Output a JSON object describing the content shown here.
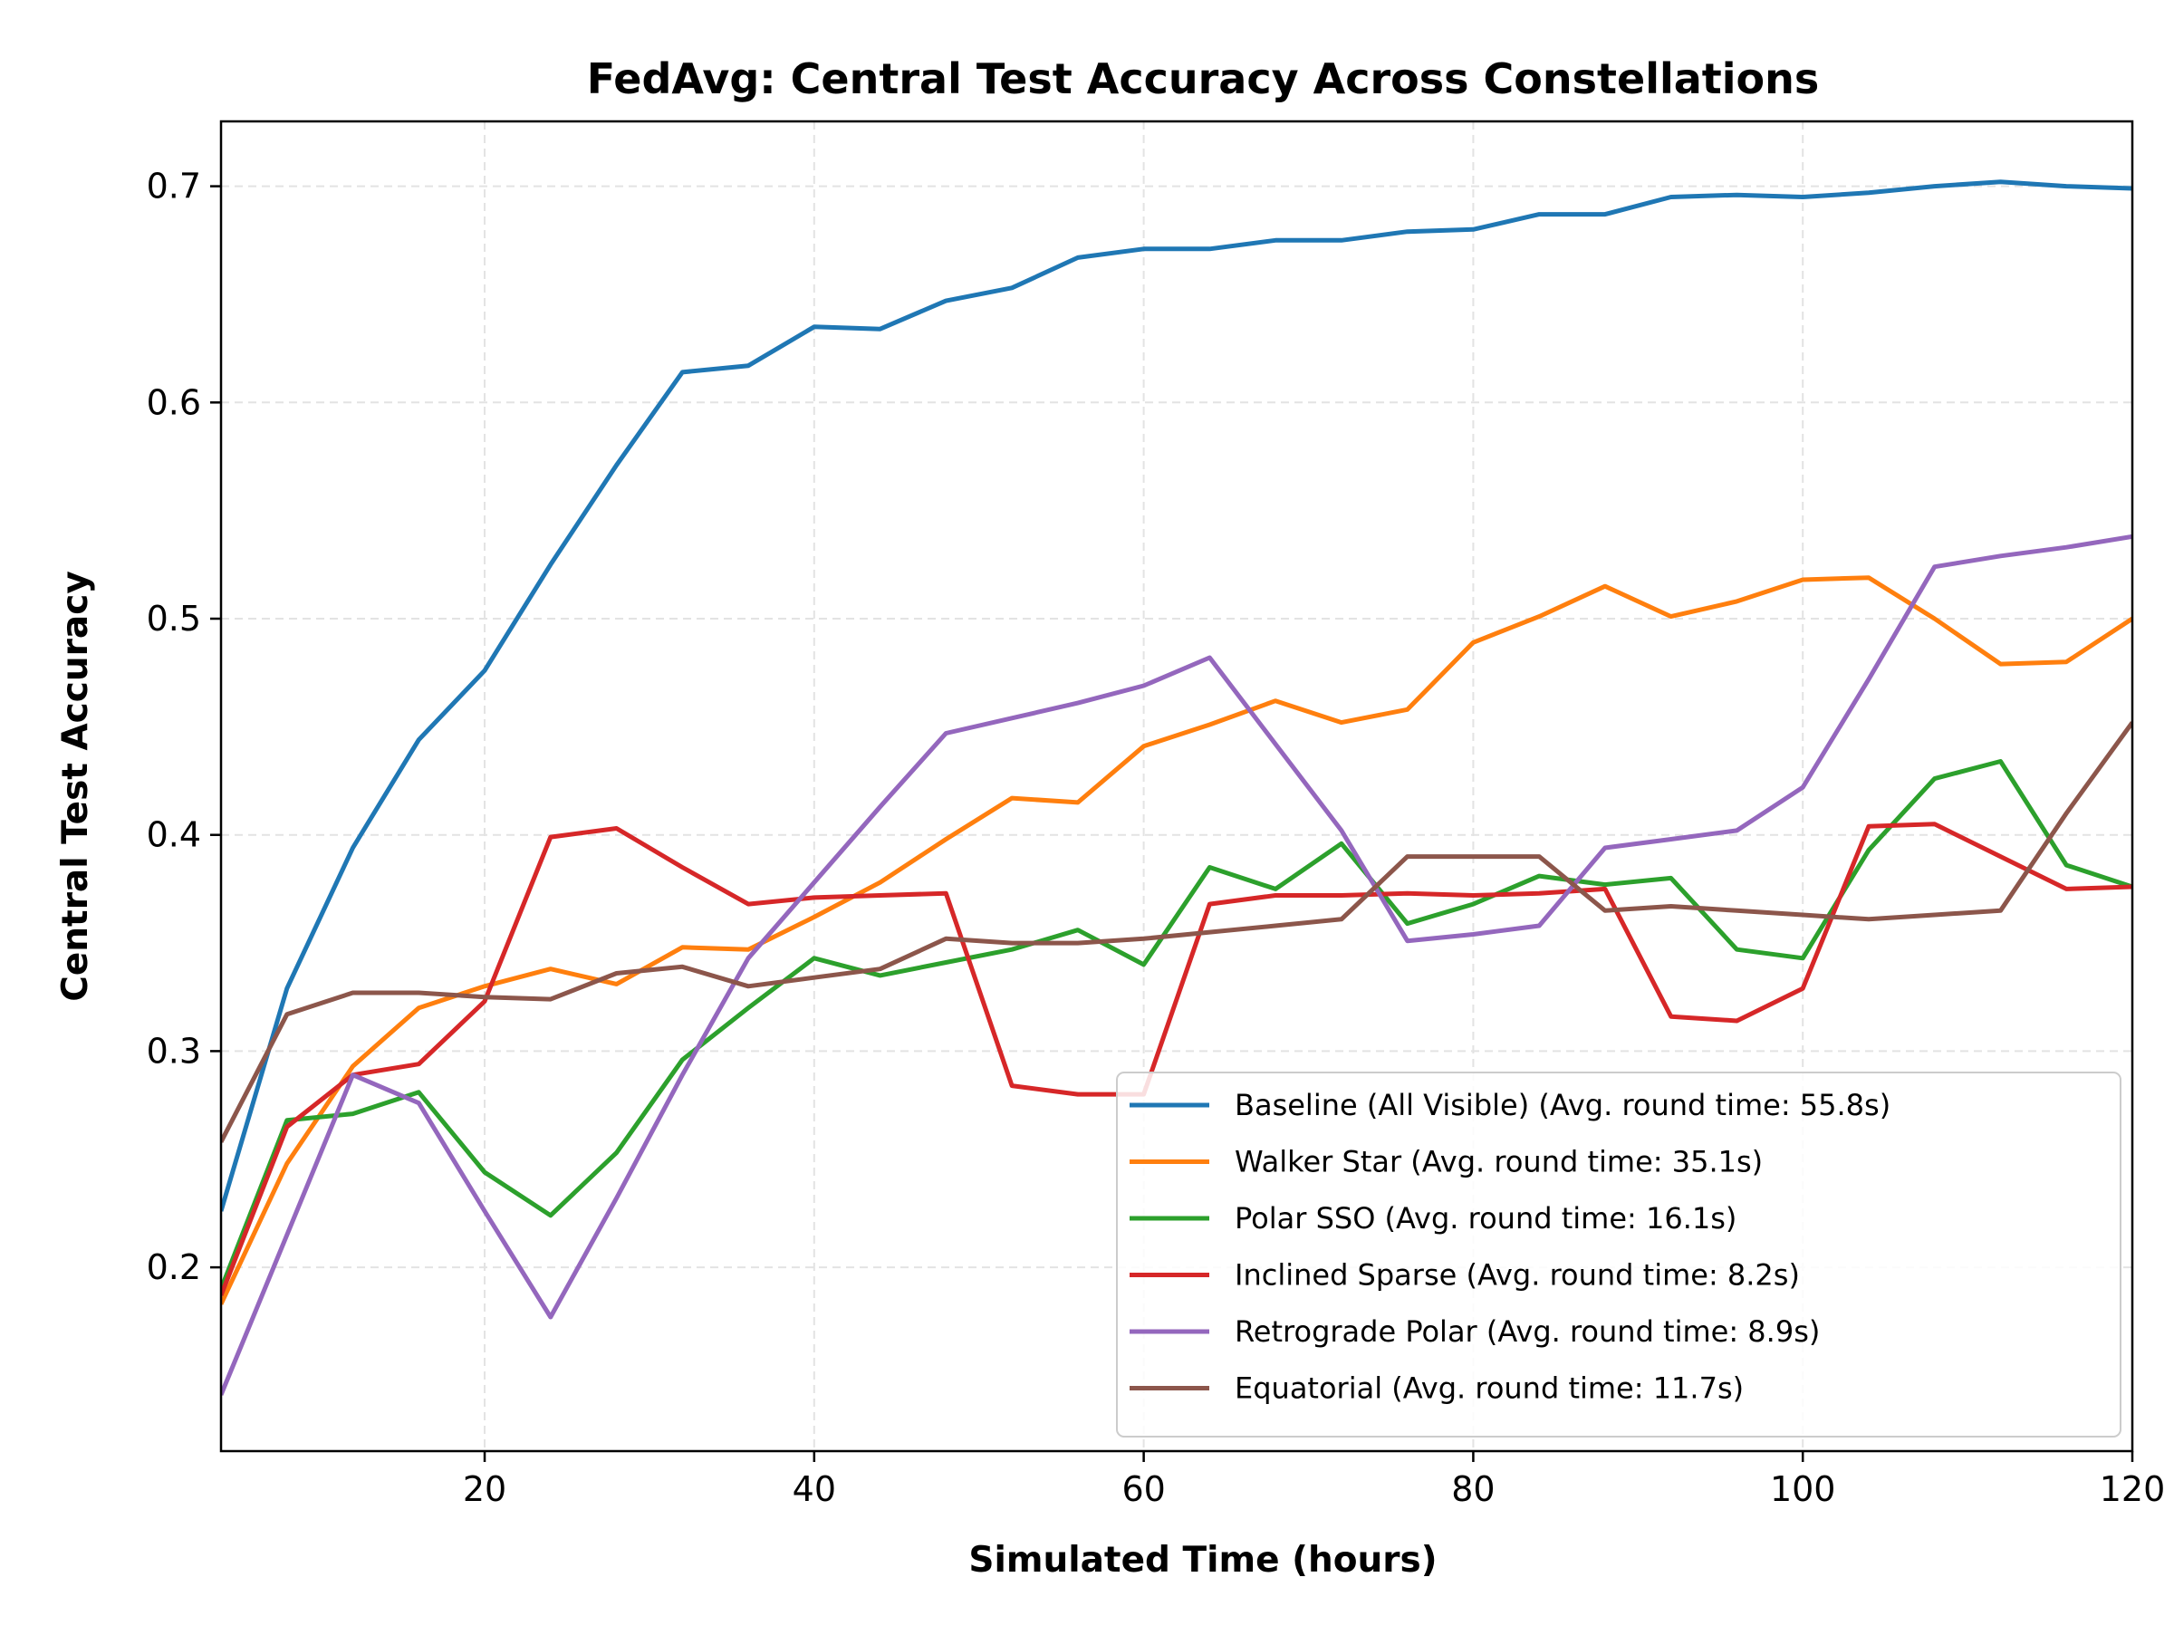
{
  "chart_data": {
    "type": "line",
    "title": "FedAvg: Central Test Accuracy Across Constellations",
    "xlabel": "Simulated Time (hours)",
    "ylabel": "Central Test Accuracy",
    "xlim": [
      4,
      120
    ],
    "ylim": [
      0.115,
      0.73
    ],
    "xticks": [
      20,
      40,
      60,
      80,
      100,
      120
    ],
    "yticks": [
      0.2,
      0.3,
      0.4,
      0.5,
      0.6,
      0.7
    ],
    "xtick_labels": [
      "20",
      "40",
      "60",
      "80",
      "100",
      "120"
    ],
    "ytick_labels": [
      "0.2",
      "0.3",
      "0.4",
      "0.5",
      "0.6",
      "0.7"
    ],
    "grid": true,
    "legend_position": "lower-right",
    "x": [
      4,
      8,
      12,
      16,
      20,
      24,
      28,
      32,
      36,
      40,
      44,
      48,
      52,
      56,
      60,
      64,
      68,
      72,
      76,
      80,
      84,
      88,
      92,
      96,
      100,
      104,
      108,
      112,
      116,
      120
    ],
    "series": [
      {
        "name": "Baseline (All Visible) (Avg. round time: 55.8s)",
        "color": "#1f77b4",
        "values": [
          0.226,
          0.329,
          0.394,
          0.444,
          0.476,
          0.525,
          0.571,
          0.614,
          0.617,
          0.635,
          0.634,
          0.647,
          0.653,
          0.667,
          0.671,
          0.671,
          0.675,
          0.675,
          0.679,
          0.68,
          0.687,
          0.687,
          0.695,
          0.696,
          0.695,
          0.697,
          0.7,
          0.702,
          0.7,
          0.699
        ]
      },
      {
        "name": "Walker Star (Avg. round time: 35.1s)",
        "color": "#ff7f0e",
        "values": [
          0.183,
          0.248,
          0.293,
          0.32,
          0.33,
          0.338,
          0.331,
          0.348,
          0.347,
          0.362,
          0.378,
          0.398,
          0.417,
          0.415,
          0.441,
          0.451,
          0.462,
          0.452,
          0.458,
          0.489,
          0.501,
          0.515,
          0.501,
          0.508,
          0.518,
          0.519,
          0.5,
          0.479,
          0.48,
          0.5
        ]
      },
      {
        "name": "Polar SSO (Avg. round time: 16.1s)",
        "color": "#2ca02c",
        "values": [
          0.19,
          0.268,
          0.271,
          0.281,
          0.244,
          0.224,
          0.253,
          0.296,
          0.32,
          0.343,
          0.335,
          0.341,
          0.347,
          0.356,
          0.34,
          0.385,
          0.375,
          0.396,
          0.359,
          0.368,
          0.381,
          0.377,
          0.38,
          0.347,
          0.343,
          0.393,
          0.426,
          0.434,
          0.386,
          0.376
        ]
      },
      {
        "name": "Inclined Sparse (Avg. round time: 8.2s)",
        "color": "#d62728",
        "values": [
          0.187,
          0.265,
          0.289,
          0.294,
          0.323,
          0.399,
          0.403,
          0.385,
          0.368,
          0.371,
          0.372,
          0.373,
          0.284,
          0.28,
          0.28,
          0.368,
          0.372,
          0.372,
          0.373,
          0.372,
          0.373,
          0.375,
          0.316,
          0.314,
          0.329,
          0.404,
          0.405,
          0.39,
          0.375,
          0.376
        ]
      },
      {
        "name": "Retrograde Polar (Avg. round time: 8.9s)",
        "color": "#9467bd",
        "values": [
          0.141,
          0.215,
          0.289,
          0.276,
          0.226,
          0.177,
          0.232,
          0.289,
          0.343,
          0.378,
          0.413,
          0.447,
          0.454,
          0.461,
          0.469,
          0.482,
          0.442,
          0.402,
          0.351,
          0.354,
          0.358,
          0.394,
          0.398,
          0.402,
          0.422,
          0.472,
          0.524,
          0.529,
          0.533,
          0.538
        ]
      },
      {
        "name": "Equatorial (Avg. round time: 11.7s)",
        "color": "#8c564b",
        "values": [
          0.258,
          0.317,
          0.327,
          0.327,
          0.325,
          0.324,
          0.336,
          0.339,
          0.33,
          0.334,
          0.338,
          0.352,
          0.35,
          0.35,
          0.352,
          0.355,
          0.358,
          0.361,
          0.39,
          0.39,
          0.39,
          0.365,
          0.367,
          0.365,
          0.363,
          0.361,
          0.363,
          0.365,
          0.41,
          0.452
        ]
      }
    ]
  }
}
